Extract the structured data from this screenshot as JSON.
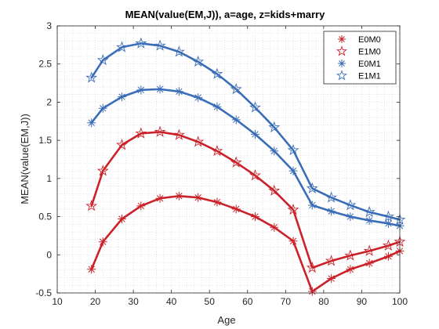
{
  "chart_data": {
    "type": "line",
    "title": "MEAN(value(EM,J)), a=age, z=kids+marry",
    "xlabel": "Age",
    "ylabel": "MEAN(value(EM,J))",
    "xlim": [
      10,
      100
    ],
    "ylim": [
      -0.5,
      3
    ],
    "xticks": [
      "10",
      "20",
      "30",
      "40",
      "50",
      "60",
      "70",
      "80",
      "90",
      "100"
    ],
    "yticks": [
      "-0.5",
      "0",
      "0.5",
      "1",
      "1.5",
      "2",
      "2.5",
      "3"
    ],
    "grid": "minor-dotted",
    "legend_position": "top-right",
    "x": [
      19,
      22,
      27,
      32,
      37,
      42,
      47,
      52,
      57,
      62,
      67,
      72,
      77,
      82,
      87,
      92,
      97,
      100
    ],
    "series": [
      {
        "name": "E0M0",
        "color": "#cb2128",
        "marker": "asterisk",
        "values": [
          -0.19,
          0.17,
          0.47,
          0.64,
          0.74,
          0.77,
          0.75,
          0.69,
          0.6,
          0.5,
          0.36,
          0.18,
          -0.48,
          -0.31,
          -0.19,
          -0.11,
          -0.02,
          0.05
        ]
      },
      {
        "name": "E1M0",
        "color": "#cb2128",
        "marker": "pentagram",
        "values": [
          0.64,
          1.1,
          1.44,
          1.59,
          1.61,
          1.57,
          1.48,
          1.36,
          1.21,
          1.04,
          0.84,
          0.59,
          -0.17,
          -0.08,
          -0.01,
          0.05,
          0.12,
          0.17
        ]
      },
      {
        "name": "E0M1",
        "color": "#3a6db8",
        "marker": "asterisk",
        "values": [
          1.73,
          1.92,
          2.07,
          2.16,
          2.17,
          2.14,
          2.06,
          1.94,
          1.77,
          1.58,
          1.36,
          1.1,
          0.65,
          0.57,
          0.5,
          0.45,
          0.41,
          0.38
        ]
      },
      {
        "name": "E1M1",
        "color": "#3a6db8",
        "marker": "pentagram",
        "values": [
          2.32,
          2.55,
          2.72,
          2.77,
          2.74,
          2.66,
          2.53,
          2.37,
          2.17,
          1.93,
          1.67,
          1.37,
          0.87,
          0.75,
          0.65,
          0.56,
          0.5,
          0.46
        ]
      }
    ]
  }
}
